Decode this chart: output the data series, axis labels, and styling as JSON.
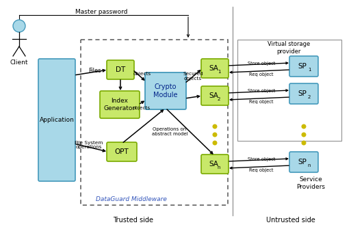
{
  "fig_width": 5.13,
  "fig_height": 3.32,
  "dpi": 100,
  "box_green_face": "#c8e86a",
  "box_green_edge": "#7aaa00",
  "box_blue_face": "#a8d8e8",
  "box_blue_edge": "#4499bb",
  "trusted_border": "#666666",
  "vsp_border": "#999999",
  "labels": {
    "master_password": "Master password",
    "files": "Files",
    "objects1": "objects",
    "objects2": "objects",
    "secured_objects": "Secured\nobjects",
    "operations": "Operations on\nabstract model",
    "file_system": "File System\noperations",
    "trusted_side": "Trusted side",
    "untrusted_side": "Untrusted side",
    "dataguard": "DataGuard Middleware",
    "virtual_storage": "Virtual storage\nprovider",
    "service_providers": "Service\nProviders",
    "store_obj": "Store object",
    "req_obj": "Req object",
    "client": "Client",
    "application": "Application",
    "DT": "DT",
    "index_generator": "Index\nGenerator",
    "crypto_module": "Crypto\nModule",
    "OPT": "OPT",
    "SA": "SA",
    "SP": "SP"
  }
}
